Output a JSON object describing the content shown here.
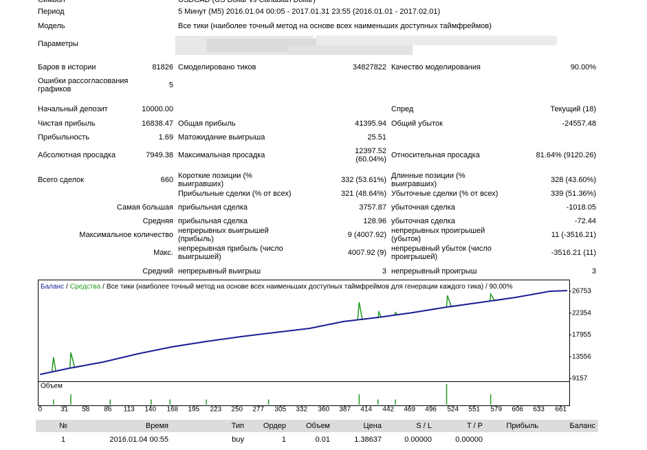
{
  "header": {
    "symbol": {
      "label": "Символ",
      "value": "USDCAD (US Dollar vs Canadian Dollar)"
    },
    "period": {
      "label": "Период",
      "value": "5 Минут (M5) 2016.01.04 00:05 - 2017.01.31 23:55 (2016.01.01 - 2017.02.01)"
    },
    "model": {
      "label": "Модель",
      "value": "Все тики (наиболее точный метод на основе всех наименьших доступных таймфреймов)"
    },
    "parameters": {
      "label": "Параметры"
    }
  },
  "stats": {
    "rows": [
      {
        "a_label": "Баров в истории",
        "a_value": "81826",
        "b_label": "Смоделировано тиков",
        "b_value": "34827822",
        "c_label": "Качество моделирования",
        "c_value": "90.00%"
      },
      {
        "a_label": "Ошибки рассогласования графиков",
        "a_value": "5"
      },
      {
        "a_label": "Начальный депозит",
        "a_value": "10000.00",
        "c_label": "Спред",
        "c_value": "Текущий (18)"
      },
      {
        "a_label": "Чистая прибыль",
        "a_value": "16838.47",
        "b_label": "Общая прибыль",
        "b_value": "41395.94",
        "c_label": "Общий убыток",
        "c_value": "-24557.48"
      },
      {
        "a_label": "Прибыльность",
        "a_value": "1.69",
        "b_label": "Матожидание выигрыша",
        "b_value": "25.51"
      },
      {
        "a_label": "Абсолютная просадка",
        "a_value": "7949.38",
        "b_label": "Максимальная просадка",
        "b_value": "12397.52 (60.04%)",
        "c_label": "Относительная просадка",
        "c_value": "81.64% (9120.26)"
      },
      {
        "a_label": "Всего сделок",
        "a_value": "660",
        "b_label": "Короткие позиции (% выигравших)",
        "b_value": "332 (53.61%)",
        "c_label": "Длинные позиции (% выигравших)",
        "c_value": "328 (43.60%)"
      },
      {
        "b_label": "Прибыльные сделки (% от всех)",
        "b_value": "321 (48.64%)",
        "c_label": "Убыточные сделки (% от всех)",
        "c_value": "339 (51.36%)"
      },
      {
        "a_label": "Самая большая",
        "b_label": "прибыльная сделка",
        "b_value": "3757.87",
        "c_label": "убыточная сделка",
        "c_value": "-1018.05"
      },
      {
        "a_label": "Средняя",
        "b_label": "прибыльная сделка",
        "b_value": "128.96",
        "c_label": "убыточная сделка",
        "c_value": "-72.44"
      },
      {
        "a_label": "Максимальное количество",
        "b_label": "непрерывных выигрышей (прибыль)",
        "b_value": "9 (4007.92)",
        "c_label": "непрерывных проигрышей (убыток)",
        "c_value": "11 (-3516.21)"
      },
      {
        "a_label": "Макс.",
        "b_label": "непрерывная прибыль (число выигрышей)",
        "b_value": "4007.92 (9)",
        "c_label": "непрерывный убыток (число проигрышей)",
        "c_value": "-3516.21 (11)"
      },
      {
        "a_label": "Средний",
        "b_label": "непрерывный выигрыш",
        "b_value": "3",
        "c_label": "непрерывный проигрыш",
        "c_value": "3"
      }
    ]
  },
  "chart_data": {
    "type": "line",
    "separator": "/",
    "note": "Все тики (наиболее точный метод на основе всех наименьших доступных таймфреймов для генерации каждого тика) / 90.00%",
    "xlim": [
      -2,
      670
    ],
    "ylim": [
      9018,
      28970
    ],
    "xticks": [
      0,
      31,
      58,
      86,
      113,
      140,
      168,
      195,
      223,
      250,
      277,
      305,
      332,
      360,
      387,
      414,
      442,
      469,
      496,
      524,
      551,
      579,
      606,
      633,
      661
    ],
    "yticks": [
      26753,
      22354,
      17955,
      13556,
      9157
    ],
    "series": [
      {
        "name": "Баланс",
        "color": "#1c1c96",
        "x": [
          0,
          37,
          80,
          124,
          167,
          211,
          255,
          298,
          342,
          385,
          429,
          473,
          516,
          560,
          603,
          647,
          669
        ],
        "values": [
          9988,
          11235,
          12482,
          14145,
          15530,
          16638,
          17608,
          18439,
          19271,
          20656,
          21487,
          22457,
          23565,
          24535,
          25505,
          26752,
          26890
        ]
      },
      {
        "name": "Средства",
        "color": "#1f9a1f",
        "x": [
          0,
          15,
          17,
          20,
          37,
          38,
          39,
          44,
          80,
          124,
          167,
          211,
          255,
          298,
          342,
          385,
          403,
          405,
          409,
          429,
          430,
          433,
          450,
          451,
          454,
          473,
          516,
          517,
          522,
          560,
          571,
          572,
          577,
          603,
          647,
          669
        ],
        "values": [
          9988,
          10494,
          13452,
          10650,
          11235,
          11260,
          14420,
          11380,
          12482,
          14145,
          15530,
          16638,
          17608,
          18439,
          19271,
          20656,
          20996,
          24535,
          21070,
          21487,
          22600,
          21530,
          21950,
          22500,
          21990,
          22457,
          23565,
          25920,
          23640,
          24535,
          24780,
          26200,
          24860,
          25505,
          26752,
          26890
        ]
      }
    ],
    "volume": {
      "name": "Объем",
      "color": "#1f9a1f",
      "x": [
        17,
        39,
        89,
        141,
        165,
        211,
        290,
        405,
        429,
        451,
        516,
        572
      ],
      "values": [
        1,
        2,
        1,
        1,
        1,
        1,
        1,
        2,
        1,
        1,
        4,
        2
      ]
    }
  },
  "table": {
    "header": [
      "№",
      "Время",
      "Тип",
      "Ордер",
      "Объем",
      "Цена",
      "S / L",
      "T / P",
      "Прибыль",
      "Баланс"
    ],
    "rows": [
      [
        "1",
        "2016.01.04 00:55",
        "buy",
        "1",
        "0.01",
        "1.38637",
        "0.00000",
        "0.00000"
      ]
    ]
  }
}
